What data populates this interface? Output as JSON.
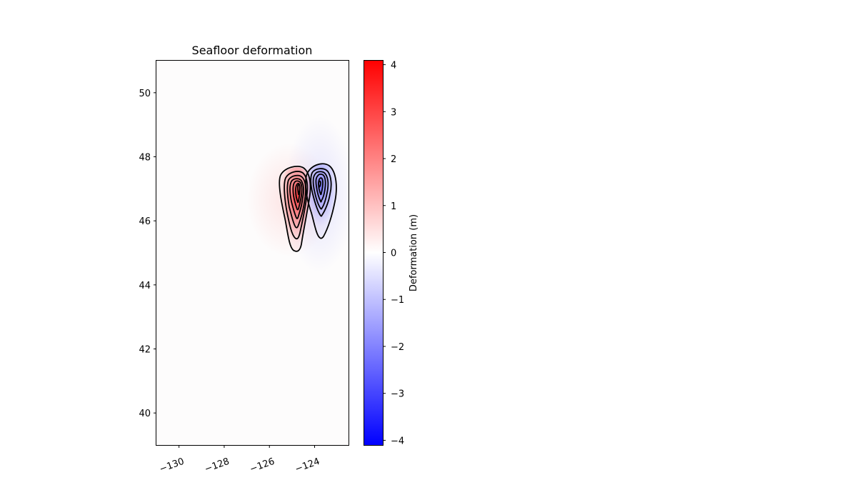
{
  "chart_data": [
    {
      "type": "heatmap",
      "title": "Seafloor deformation",
      "xlabel": "",
      "ylabel": "",
      "xlim": [
        -131,
        -122.5
      ],
      "ylim": [
        39,
        51
      ],
      "x_ticks": [
        -130,
        -128,
        -126,
        -124
      ],
      "x_tick_labels": [
        "−130",
        "−128",
        "−126",
        "−124"
      ],
      "y_ticks": [
        40,
        42,
        44,
        46,
        48,
        50
      ],
      "y_tick_labels": [
        "40",
        "42",
        "44",
        "46",
        "48",
        "50"
      ],
      "grid": false,
      "colormap": "bwr",
      "colormap_colors": {
        "low": "#0000ff",
        "mid": "#ffffff",
        "high": "#ff0000"
      },
      "uplift_lobe": {
        "center_lon": -124.9,
        "center_lat": 46.7,
        "peak_value": 4.1,
        "lat_extent": [
          45.1,
          47.6
        ]
      },
      "subsidence_lobe": {
        "center_lon": -123.8,
        "center_lat": 47.1,
        "peak_value": -1.6,
        "lat_extent": [
          45.4,
          47.8
        ]
      },
      "contour_color": "#000000"
    },
    {
      "type": "colorbar",
      "label": "Deformation (m)",
      "range": [
        -4.1,
        4.1
      ],
      "ticks": [
        -4,
        -3,
        -2,
        -1,
        0,
        1,
        2,
        3,
        4
      ],
      "tick_labels": [
        "−4",
        "−3",
        "−2",
        "−1",
        "0",
        "1",
        "2",
        "3",
        "4"
      ]
    }
  ]
}
